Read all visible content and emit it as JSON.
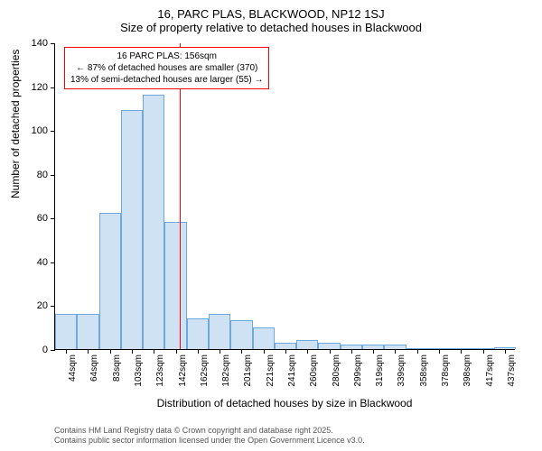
{
  "chart": {
    "type": "histogram",
    "title_main": "16, PARC PLAS, BLACKWOOD, NP12 1SJ",
    "title_sub": "Size of property relative to detached houses in Blackwood",
    "title_fontsize": 13,
    "ylabel": "Number of detached properties",
    "xlabel": "Distribution of detached houses by size in Blackwood",
    "label_fontsize": 12,
    "ylim": [
      0,
      140
    ],
    "ytick_step": 20,
    "yticks": [
      0,
      20,
      40,
      60,
      80,
      100,
      120,
      140
    ],
    "xticks": [
      "44sqm",
      "64sqm",
      "83sqm",
      "103sqm",
      "123sqm",
      "142sqm",
      "162sqm",
      "182sqm",
      "201sqm",
      "221sqm",
      "241sqm",
      "260sqm",
      "280sqm",
      "299sqm",
      "319sqm",
      "339sqm",
      "358sqm",
      "378sqm",
      "398sqm",
      "417sqm",
      "437sqm"
    ],
    "values": [
      16,
      16,
      62,
      109,
      116,
      58,
      14,
      16,
      13,
      10,
      3,
      4,
      3,
      2,
      2,
      2,
      0,
      0,
      0,
      0,
      1
    ],
    "bar_fill": "#cfe2f3",
    "bar_stroke": "#6fa8dc",
    "bar_width": 1.0,
    "background_color": "#ffffff",
    "axis_color": "#000000",
    "tick_fontsize": 11,
    "xtick_fontsize": 10,
    "marker": {
      "position_index": 5.7,
      "color": "#ff0000",
      "label_line1": "16 PARC PLAS: 156sqm",
      "label_line2": "← 87% of detached houses are smaller (370)",
      "label_line3": "13% of semi-detached houses are larger (55) →",
      "box_border": "#ff0000",
      "box_bg": "#ffffff",
      "box_fontsize": 10
    },
    "footer_line1": "Contains HM Land Registry data © Crown copyright and database right 2025.",
    "footer_line2": "Contains public sector information licensed under the Open Government Licence v3.0.",
    "footer_color": "#555555",
    "footer_fontsize": 9
  }
}
